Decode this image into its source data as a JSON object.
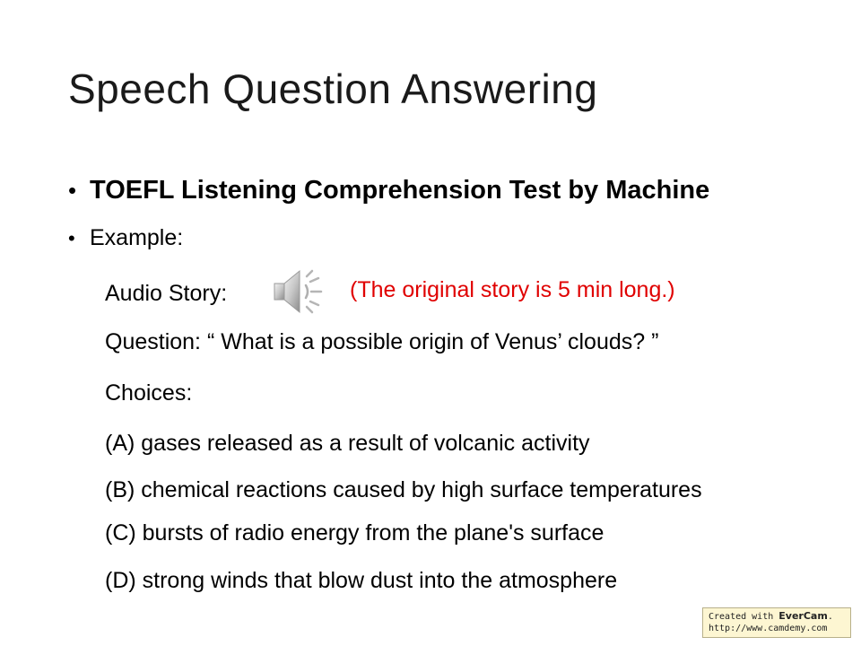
{
  "slide": {
    "title": "Speech Question Answering",
    "bullets": [
      {
        "text": "TOEFL Listening Comprehension Test by Machine"
      },
      {
        "text": "Example:"
      }
    ],
    "audio_story_label": "Audio Story:",
    "audio_note": "(The original story is 5 min long.)",
    "question": "Question: “ What is a possible origin of Venus’ clouds? ”",
    "choices_label": "Choices:",
    "choices": [
      "(A) gases released as a result of volcanic activity",
      "(B) chemical reactions caused by high surface temperatures",
      "(C) bursts of radio energy from the plane's surface",
      "(D) strong winds that blow dust into the atmosphere"
    ],
    "bullet_symbol": "•",
    "speaker_icon": "speaker-icon",
    "note_color": "#e00000"
  },
  "watermark": {
    "prefix": "Created with ",
    "brand": "EverCam",
    "suffix": ".",
    "url": "http://www.camdemy.com"
  }
}
